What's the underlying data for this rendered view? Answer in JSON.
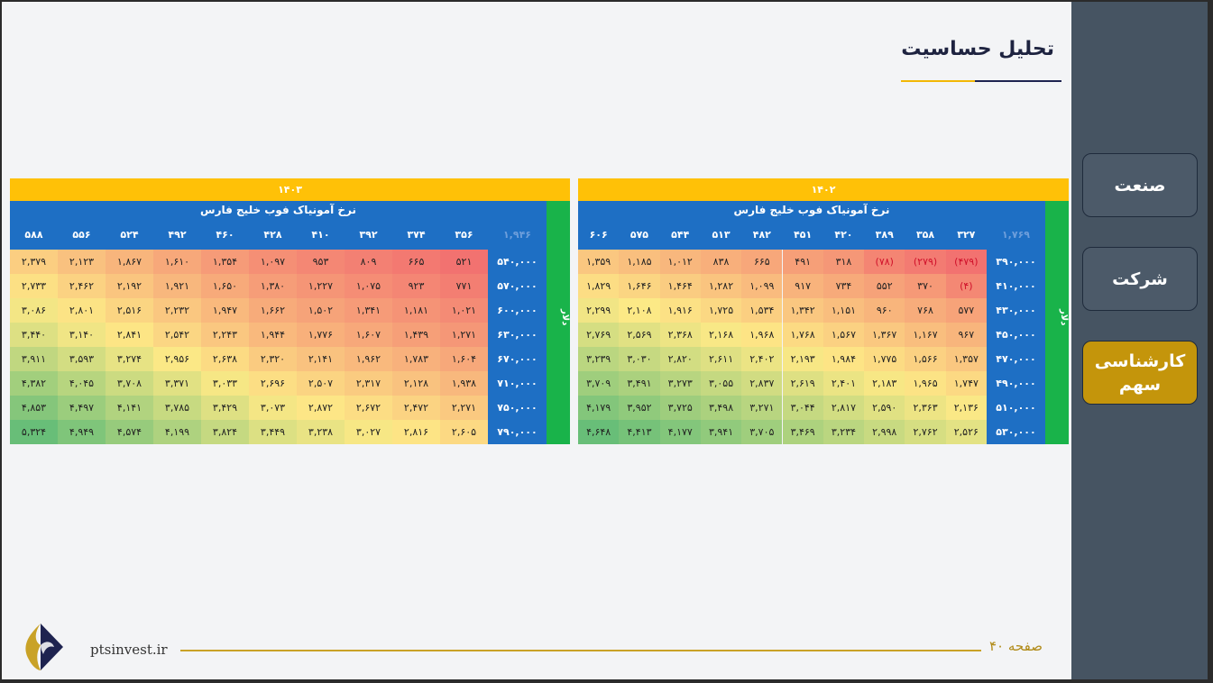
{
  "title": "تحلیل حساسیت",
  "nav": [
    {
      "label": "صنعت",
      "active": false
    },
    {
      "label": "شرکت",
      "active": false
    },
    {
      "label": "کارشناسی سهم",
      "active": true
    }
  ],
  "footer": {
    "page": "صفحه ۴۰",
    "site": "ptsinvest.ir"
  },
  "tables": [
    {
      "year": "۱۴۰۲",
      "subtitle": "نرخ آمونیاک فوب خلیج فارس",
      "side_label": "دلار",
      "corner": "۱,۷۶۹",
      "columns": [
        "۳۲۷",
        "۳۵۸",
        "۳۸۹",
        "۴۲۰",
        "۴۵۱",
        "۴۸۲",
        "۵۱۳",
        "۵۴۴",
        "۵۷۵",
        "۶۰۶"
      ],
      "rows": [
        {
          "label": "۳۹۰,۰۰۰",
          "cells": [
            "(۴۷۹)",
            "(۲۷۹)",
            "(۷۸)",
            "۳۱۸",
            "۴۹۱",
            "۶۶۵",
            "۸۳۸",
            "۱,۰۱۲",
            "۱,۱۸۵",
            "۱,۳۵۹"
          ]
        },
        {
          "label": "۴۱۰,۰۰۰",
          "cells": [
            "(۴)",
            "۳۷۰",
            "۵۵۲",
            "۷۳۴",
            "۹۱۷",
            "۱,۰۹۹",
            "۱,۲۸۲",
            "۱,۴۶۴",
            "۱,۶۴۶",
            "۱,۸۲۹"
          ]
        },
        {
          "label": "۴۳۰,۰۰۰",
          "cells": [
            "۵۷۷",
            "۷۶۸",
            "۹۶۰",
            "۱,۱۵۱",
            "۱,۳۴۲",
            "۱,۵۳۴",
            "۱,۷۲۵",
            "۱,۹۱۶",
            "۲,۱۰۸",
            "۲,۲۹۹"
          ]
        },
        {
          "label": "۴۵۰,۰۰۰",
          "cells": [
            "۹۶۷",
            "۱,۱۶۷",
            "۱,۳۶۷",
            "۱,۵۶۷",
            "۱,۷۶۸",
            "۱,۹۶۸",
            "۲,۱۶۸",
            "۲,۳۶۸",
            "۲,۵۶۹",
            "۲,۷۶۹"
          ]
        },
        {
          "label": "۴۷۰,۰۰۰",
          "cells": [
            "۱,۳۵۷",
            "۱,۵۶۶",
            "۱,۷۷۵",
            "۱,۹۸۴",
            "۲,۱۹۳",
            "۲,۴۰۲",
            "۲,۶۱۱",
            "۲,۸۲۰",
            "۳,۰۳۰",
            "۳,۲۳۹"
          ]
        },
        {
          "label": "۴۹۰,۰۰۰",
          "cells": [
            "۱,۷۴۷",
            "۱,۹۶۵",
            "۲,۱۸۳",
            "۲,۴۰۱",
            "۲,۶۱۹",
            "۲,۸۳۷",
            "۳,۰۵۵",
            "۳,۲۷۳",
            "۳,۴۹۱",
            "۳,۷۰۹"
          ]
        },
        {
          "label": "۵۱۰,۰۰۰",
          "cells": [
            "۲,۱۳۶",
            "۲,۳۶۳",
            "۲,۵۹۰",
            "۲,۸۱۷",
            "۳,۰۴۴",
            "۳,۲۷۱",
            "۳,۴۹۸",
            "۳,۷۲۵",
            "۳,۹۵۲",
            "۴,۱۷۹"
          ]
        },
        {
          "label": "۵۳۰,۰۰۰",
          "cells": [
            "۲,۵۲۶",
            "۲,۷۶۲",
            "۲,۹۹۸",
            "۳,۲۳۴",
            "۳,۴۶۹",
            "۳,۷۰۵",
            "۳,۹۴۱",
            "۴,۱۷۷",
            "۴,۴۱۳",
            "۴,۶۴۸"
          ]
        }
      ]
    },
    {
      "year": "۱۴۰۳",
      "subtitle": "نرخ آمونیاک فوب خلیج فارس",
      "side_label": "دلار",
      "corner": "۱,۹۴۶",
      "columns": [
        "۳۵۶",
        "۳۷۴",
        "۳۹۲",
        "۴۱۰",
        "۴۲۸",
        "۴۶۰",
        "۴۹۲",
        "۵۲۴",
        "۵۵۶",
        "۵۸۸"
      ],
      "rows": [
        {
          "label": "۵۴۰,۰۰۰",
          "cells": [
            "۵۲۱",
            "۶۶۵",
            "۸۰۹",
            "۹۵۳",
            "۱,۰۹۷",
            "۱,۳۵۴",
            "۱,۶۱۰",
            "۱,۸۶۷",
            "۲,۱۲۳",
            "۲,۳۷۹"
          ]
        },
        {
          "label": "۵۷۰,۰۰۰",
          "cells": [
            "۷۷۱",
            "۹۲۳",
            "۱,۰۷۵",
            "۱,۲۲۷",
            "۱,۳۸۰",
            "۱,۶۵۰",
            "۱,۹۲۱",
            "۲,۱۹۲",
            "۲,۴۶۲",
            "۲,۷۳۳"
          ]
        },
        {
          "label": "۶۰۰,۰۰۰",
          "cells": [
            "۱,۰۲۱",
            "۱,۱۸۱",
            "۱,۳۴۱",
            "۱,۵۰۲",
            "۱,۶۶۲",
            "۱,۹۴۷",
            "۲,۲۳۲",
            "۲,۵۱۶",
            "۲,۸۰۱",
            "۳,۰۸۶"
          ]
        },
        {
          "label": "۶۳۰,۰۰۰",
          "cells": [
            "۱,۲۷۱",
            "۱,۴۳۹",
            "۱,۶۰۷",
            "۱,۷۷۶",
            "۱,۹۴۴",
            "۲,۲۴۳",
            "۲,۵۴۲",
            "۲,۸۴۱",
            "۳,۱۴۰",
            "۳,۴۴۰"
          ]
        },
        {
          "label": "۶۷۰,۰۰۰",
          "cells": [
            "۱,۶۰۴",
            "۱,۷۸۳",
            "۱,۹۶۲",
            "۲,۱۴۱",
            "۲,۳۲۰",
            "۲,۶۳۸",
            "۲,۹۵۶",
            "۳,۲۷۴",
            "۳,۵۹۳",
            "۳,۹۱۱"
          ]
        },
        {
          "label": "۷۱۰,۰۰۰",
          "cells": [
            "۱,۹۳۸",
            "۲,۱۲۸",
            "۲,۳۱۷",
            "۲,۵۰۷",
            "۲,۶۹۶",
            "۳,۰۳۳",
            "۳,۳۷۱",
            "۳,۷۰۸",
            "۴,۰۴۵",
            "۴,۳۸۲"
          ]
        },
        {
          "label": "۷۵۰,۰۰۰",
          "cells": [
            "۲,۲۷۱",
            "۲,۴۷۲",
            "۲,۶۷۲",
            "۲,۸۷۲",
            "۳,۰۷۳",
            "۳,۴۲۹",
            "۳,۷۸۵",
            "۴,۱۴۱",
            "۴,۴۹۷",
            "۴,۸۵۳"
          ]
        },
        {
          "label": "۷۹۰,۰۰۰",
          "cells": [
            "۲,۶۰۵",
            "۲,۸۱۶",
            "۳,۰۲۷",
            "۳,۲۳۸",
            "۳,۴۴۹",
            "۳,۸۲۴",
            "۴,۱۹۹",
            "۴,۵۷۴",
            "۴,۹۴۹",
            "۵,۳۲۴"
          ]
        }
      ]
    }
  ]
}
